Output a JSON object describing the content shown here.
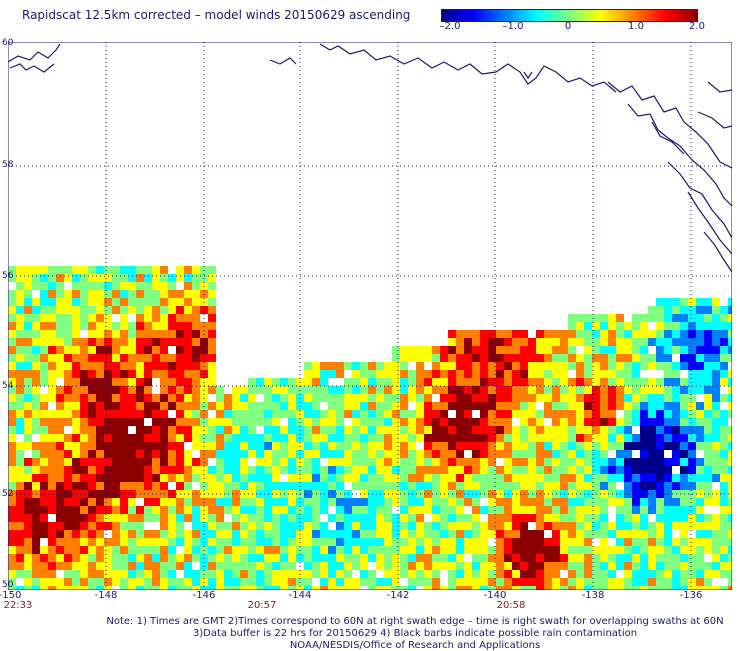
{
  "title": "Rapidscat 12.5km corrected – model winds 20150629 ascending",
  "colorbar": {
    "labels": [
      "–2.0",
      "–1.0",
      "0",
      "1.0",
      "2.0"
    ],
    "min": -2.0,
    "max": 2.0,
    "colors": [
      "#00008b",
      "#0000ff",
      "#0080ff",
      "#00ffff",
      "#80ff80",
      "#ffff00",
      "#ff8000",
      "#ff0000",
      "#8b0000"
    ]
  },
  "axes": {
    "lon_ticks": [
      "-150",
      "-148",
      "-146",
      "-144",
      "-142",
      "-140",
      "-138",
      "-136"
    ],
    "lat_ticks": [
      "60",
      "58",
      "56",
      "54",
      "52",
      "50"
    ],
    "lon_range": [
      -150,
      -135.5
    ],
    "lat_range": [
      50,
      60
    ]
  },
  "times": [
    "22:33",
    "20:57",
    "20:58"
  ],
  "notes": [
    "Note: 1) Times are GMT 2)Times correspond to 60N at right swath edge – time is right swath for overlapping swaths at 60N",
    "3)Data buffer is 22 hrs for 20150629 4) Black barbs indicate possible rain contamination",
    "NOAA/NESDIS/Office of Research and Applications"
  ]
}
